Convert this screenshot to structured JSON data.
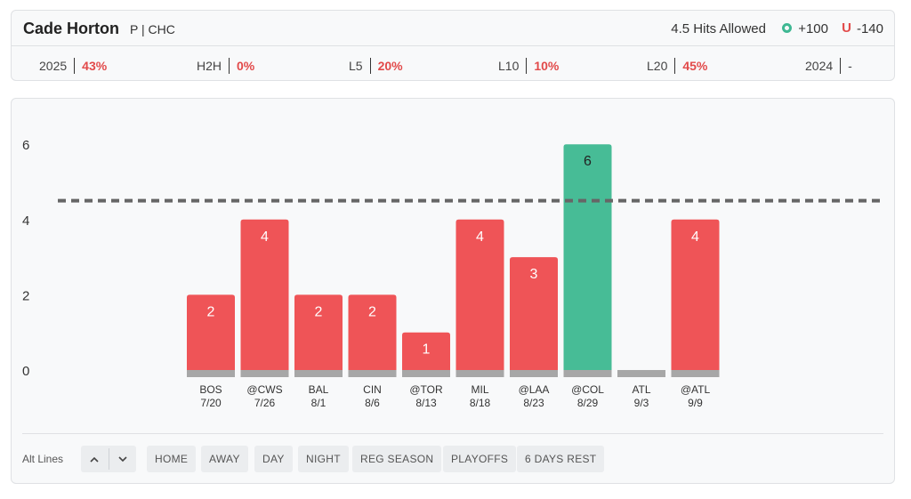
{
  "player": {
    "name": "Cade Horton",
    "pos_team": "P | CHC"
  },
  "prop": {
    "label": "4.5 Hits Allowed",
    "over_odds": "+100",
    "under_icon": "U",
    "under_odds": "-140"
  },
  "stats": [
    {
      "label": "2025",
      "value": "43%"
    },
    {
      "label": "H2H",
      "value": "0%"
    },
    {
      "label": "L5",
      "value": "20%"
    },
    {
      "label": "L10",
      "value": "10%"
    },
    {
      "label": "L20",
      "value": "45%"
    },
    {
      "label": "2024",
      "value": "-"
    }
  ],
  "colors": {
    "under": "#ef5457",
    "over": "#47bc96",
    "base": "#a7a7a7",
    "line": "#666666"
  },
  "chart_data": {
    "type": "bar",
    "categories": [
      "BOS 7/20",
      "@CWS 7/26",
      "BAL 8/1",
      "CIN 8/6",
      "@TOR 8/13",
      "MIL 8/18",
      "@LAA 8/23",
      "@COL 8/29",
      "ATL 9/3",
      "@ATL 9/9"
    ],
    "opponents": [
      "BOS",
      "@CWS",
      "BAL",
      "CIN",
      "@TOR",
      "MIL",
      "@LAA",
      "@COL",
      "ATL",
      "@ATL"
    ],
    "dates": [
      "7/20",
      "7/26",
      "8/1",
      "8/6",
      "8/13",
      "8/18",
      "8/23",
      "8/29",
      "9/3",
      "9/9"
    ],
    "values": [
      2,
      4,
      2,
      2,
      1,
      4,
      3,
      6,
      null,
      4
    ],
    "line": 4.5,
    "yticks": [
      0,
      2,
      4,
      6
    ],
    "ylim": [
      0,
      6
    ],
    "title": "",
    "xlabel": "",
    "ylabel": ""
  },
  "filters": {
    "alt_label": "Alt Lines",
    "up_icon": "chevron-up-icon",
    "down_icon": "chevron-down-icon",
    "buttons": [
      "HOME",
      "AWAY",
      "DAY",
      "NIGHT",
      "REG SEASON",
      "PLAYOFFS",
      "6 DAYS REST"
    ]
  }
}
